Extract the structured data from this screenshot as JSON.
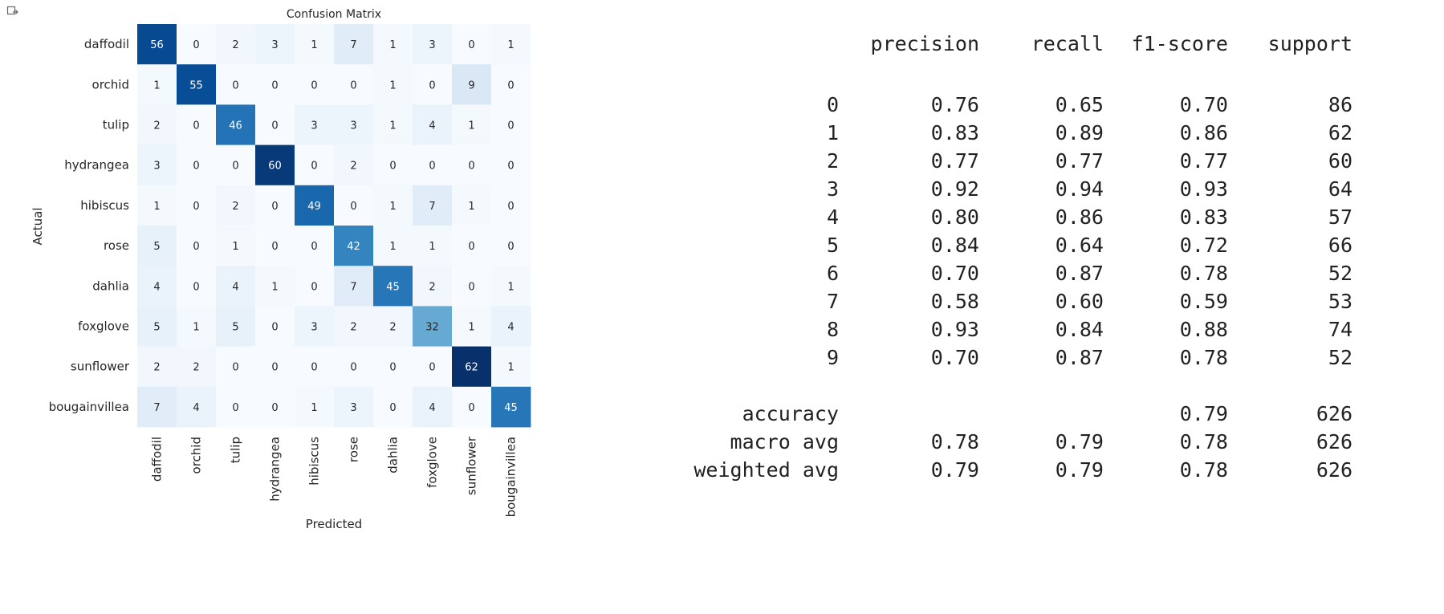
{
  "output_icon": "output-cell-icon",
  "chart_data": [
    {
      "type": "heatmap",
      "title": "Confusion Matrix",
      "xlabel": "Predicted",
      "ylabel": "Actual",
      "x_categories": [
        "daffodil",
        "orchid",
        "tulip",
        "hydrangea",
        "hibiscus",
        "rose",
        "dahlia",
        "foxglove",
        "sunflower",
        "bougainvillea"
      ],
      "y_categories": [
        "daffodil",
        "orchid",
        "tulip",
        "hydrangea",
        "hibiscus",
        "rose",
        "dahlia",
        "foxglove",
        "sunflower",
        "bougainvillea"
      ],
      "values": [
        [
          56,
          0,
          2,
          3,
          1,
          7,
          1,
          3,
          0,
          1
        ],
        [
          1,
          55,
          0,
          0,
          0,
          0,
          1,
          0,
          9,
          0
        ],
        [
          2,
          0,
          46,
          0,
          3,
          3,
          1,
          4,
          1,
          0
        ],
        [
          3,
          0,
          0,
          60,
          0,
          2,
          0,
          0,
          0,
          0
        ],
        [
          1,
          0,
          2,
          0,
          49,
          0,
          1,
          7,
          1,
          0
        ],
        [
          5,
          0,
          1,
          0,
          0,
          42,
          1,
          1,
          0,
          0
        ],
        [
          4,
          0,
          4,
          1,
          0,
          7,
          45,
          2,
          0,
          1
        ],
        [
          5,
          1,
          5,
          0,
          3,
          2,
          2,
          32,
          1,
          4
        ],
        [
          2,
          2,
          0,
          0,
          0,
          0,
          0,
          0,
          62,
          1
        ],
        [
          7,
          4,
          0,
          0,
          1,
          3,
          0,
          4,
          0,
          45
        ]
      ],
      "colormap": "Blues",
      "color_low": "#f7fbff",
      "color_high": "#08306b",
      "value_range": [
        0,
        62
      ],
      "colorbar": false
    },
    {
      "type": "table",
      "title": "",
      "columns": [
        "precision",
        "recall",
        "f1-score",
        "support"
      ],
      "rows": [
        {
          "label": "0",
          "values": [
            "0.76",
            "0.65",
            "0.70",
            "86"
          ]
        },
        {
          "label": "1",
          "values": [
            "0.83",
            "0.89",
            "0.86",
            "62"
          ]
        },
        {
          "label": "2",
          "values": [
            "0.77",
            "0.77",
            "0.77",
            "60"
          ]
        },
        {
          "label": "3",
          "values": [
            "0.92",
            "0.94",
            "0.93",
            "64"
          ]
        },
        {
          "label": "4",
          "values": [
            "0.80",
            "0.86",
            "0.83",
            "57"
          ]
        },
        {
          "label": "5",
          "values": [
            "0.84",
            "0.64",
            "0.72",
            "66"
          ]
        },
        {
          "label": "6",
          "values": [
            "0.70",
            "0.87",
            "0.78",
            "52"
          ]
        },
        {
          "label": "7",
          "values": [
            "0.58",
            "0.60",
            "0.59",
            "53"
          ]
        },
        {
          "label": "8",
          "values": [
            "0.93",
            "0.84",
            "0.88",
            "74"
          ]
        },
        {
          "label": "9",
          "values": [
            "0.70",
            "0.87",
            "0.78",
            "52"
          ]
        }
      ],
      "summary": [
        {
          "label": "accuracy",
          "values": [
            "",
            "",
            "0.79",
            "626"
          ]
        },
        {
          "label": "macro avg",
          "values": [
            "0.78",
            "0.79",
            "0.78",
            "626"
          ]
        },
        {
          "label": "weighted avg",
          "values": [
            "0.79",
            "0.79",
            "0.78",
            "626"
          ]
        }
      ]
    }
  ]
}
